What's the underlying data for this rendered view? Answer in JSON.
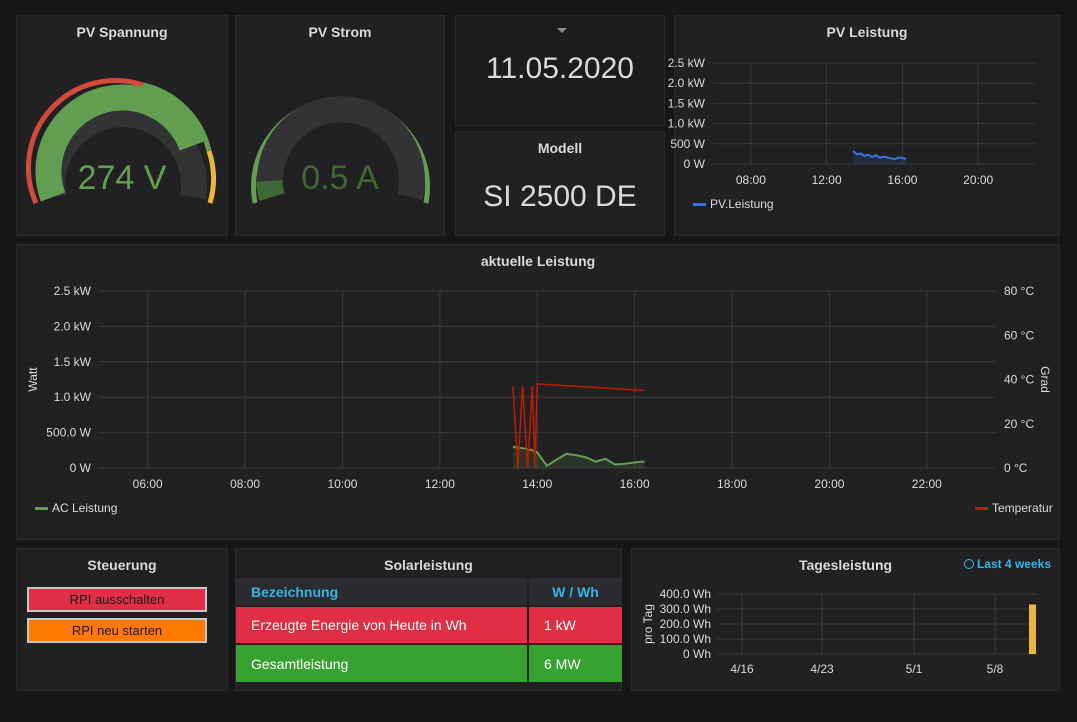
{
  "colors": {
    "green": "#629e51",
    "red": "#d44a3a",
    "orange": "#eab839",
    "blue": "#3274d9",
    "tempRed": "#bf1b00",
    "tableRed": "#e02f44",
    "tableGreen": "#37a22f",
    "btnRed": "#e02f44",
    "btnOrange": "#ff7800",
    "link": "#33b5e5",
    "yellow": "#fade2a"
  },
  "pv_spannung": {
    "title": "PV Spannung",
    "value": "274 V",
    "fraction": 0.72
  },
  "pv_strom": {
    "title": "PV Strom",
    "value": "0.5 A",
    "fraction": 0.05
  },
  "date_panel": {
    "value": "11.05.2020"
  },
  "modell": {
    "title": "Modell",
    "value": "SI 2500 DE"
  },
  "pv_leistung": {
    "title": "PV Leistung",
    "chart_data": {
      "type": "line",
      "title": "PV Leistung",
      "y_ticks": [
        "2.5 kW",
        "2.0 kW",
        "1.5 kW",
        "1.0 kW",
        "500 W",
        "0 W"
      ],
      "x_ticks": [
        "08:00",
        "12:00",
        "16:00",
        "20:00"
      ],
      "ylim": [
        0,
        2500
      ],
      "xlim_hours": [
        6,
        23
      ],
      "series": [
        {
          "name": "PV.Leistung",
          "x_hours": [
            13.4,
            13.6,
            13.8,
            14.0,
            14.2,
            14.4,
            14.6,
            14.8,
            15.0,
            15.2,
            15.4,
            15.6,
            15.8,
            16.0,
            16.2
          ],
          "values": [
            320,
            240,
            260,
            200,
            230,
            170,
            220,
            150,
            180,
            160,
            140,
            120,
            160,
            150,
            130
          ]
        }
      ],
      "legend": "bottom-left"
    }
  },
  "aktuelle_leistung": {
    "title": "aktuelle Leistung",
    "chart_data": {
      "type": "line",
      "title": "aktuelle Leistung",
      "ylabel": "Watt",
      "y2label": "Grad",
      "y_ticks": [
        "2.5 kW",
        "2.0 kW",
        "1.5 kW",
        "1.0 kW",
        "500.0 W",
        "0 W"
      ],
      "y2_ticks": [
        "80 °C",
        "60 °C",
        "40 °C",
        "20 °C",
        "0 °C"
      ],
      "x_ticks": [
        "06:00",
        "08:00",
        "10:00",
        "12:00",
        "14:00",
        "16:00",
        "18:00",
        "20:00",
        "22:00"
      ],
      "ylim": [
        0,
        2500
      ],
      "y2lim": [
        0,
        80
      ],
      "xlim_hours": [
        5,
        23.4
      ],
      "series": [
        {
          "name": "AC Leistung",
          "axis": "left",
          "x_hours": [
            13.5,
            13.7,
            13.9,
            14.0,
            14.2,
            14.4,
            14.6,
            14.8,
            15.0,
            15.2,
            15.4,
            15.6,
            15.8,
            16.0,
            16.2
          ],
          "values": [
            300,
            280,
            250,
            220,
            30,
            120,
            200,
            180,
            150,
            90,
            130,
            50,
            60,
            80,
            90
          ]
        },
        {
          "name": "Temperatur",
          "axis": "right",
          "x_hours": [
            13.5,
            13.6,
            13.7,
            13.8,
            13.9,
            13.95,
            14.0,
            16.2
          ],
          "values": [
            37,
            0,
            37,
            0,
            37,
            0,
            38,
            35
          ]
        }
      ],
      "legend": "bottom"
    }
  },
  "steuerung": {
    "title": "Steuerung",
    "buttons": [
      "RPI ausschalten",
      "RPI neu starten"
    ]
  },
  "solarleistung": {
    "title": "Solarleistung",
    "headers": [
      "Bezeichnung",
      "W / Wh"
    ],
    "rows": [
      {
        "label": "Erzeugte Energie von Heute in Wh",
        "value": "1 kW"
      },
      {
        "label": "Gesamtleistung",
        "value": "6 MW"
      }
    ]
  },
  "tagesleistung": {
    "title": "Tagesleistung",
    "time_range": "Last 4 weeks",
    "chart_data": {
      "type": "bar",
      "title": "Tagesleistung",
      "ylabel": "pro Tag",
      "y_ticks": [
        "400.0 Wh",
        "300.0 Wh",
        "200.0 Wh",
        "100.0 Wh",
        "0 Wh"
      ],
      "x_ticks": [
        "4/16",
        "4/23",
        "5/1",
        "5/8"
      ],
      "ylim": [
        0,
        400
      ],
      "bars": [
        {
          "x": "5/11",
          "value": 330
        }
      ]
    }
  }
}
